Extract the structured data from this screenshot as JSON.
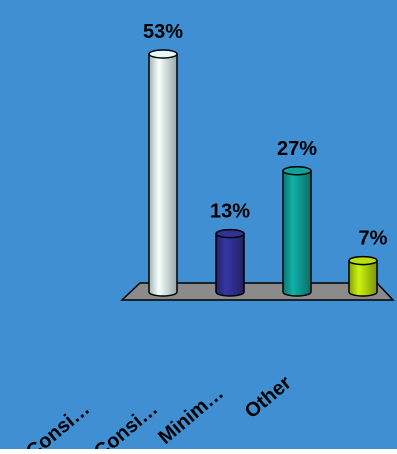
{
  "chart_data": {
    "type": "bar",
    "categories": [
      "Consi…",
      "Consi…",
      "Minim…",
      "Other"
    ],
    "values": [
      53,
      13,
      27,
      7
    ],
    "data_labels": [
      "53%",
      "13%",
      "27%",
      "7%"
    ],
    "title": "",
    "xlabel": "",
    "ylabel": "",
    "ylim": [
      0,
      53
    ],
    "grid": false,
    "legend": "none"
  },
  "colors": {
    "background": "#3f8fd2",
    "floor": "#8b8b8b",
    "bars": [
      "#d8eef0",
      "#2f2f8f",
      "#0f9a92",
      "#b0d40e"
    ],
    "text": "#000000"
  }
}
